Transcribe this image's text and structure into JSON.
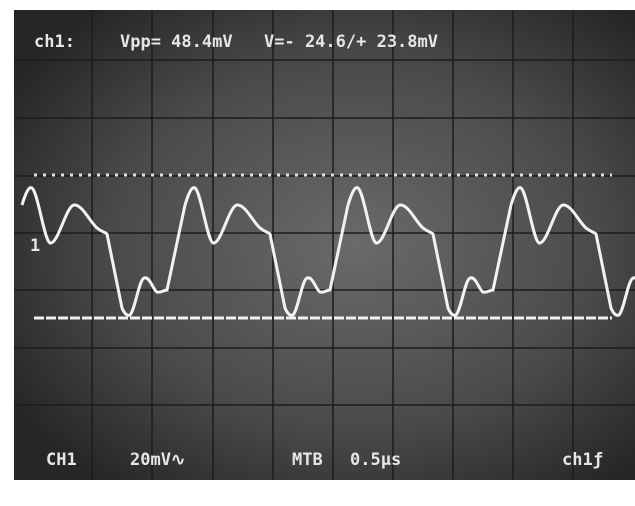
{
  "readout": {
    "channel": "ch1:",
    "vpp": "Vpp= 48.4mV",
    "v": "V=- 24.6/+ 23.8mV"
  },
  "marker": "1",
  "footer": {
    "channel": "CH1",
    "volts_div": "20mV∿",
    "timebase": "MTB",
    "time_div": "0.5µs",
    "trigger": "ch1ƒ"
  }
}
